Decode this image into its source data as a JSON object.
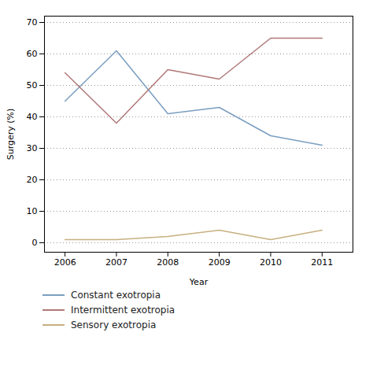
{
  "chart_data": {
    "type": "line",
    "x": [
      2006,
      2007,
      2008,
      2009,
      2010,
      2011
    ],
    "series": [
      {
        "name": "Constant exotropia",
        "color": "#7a9ec0",
        "values": [
          45,
          61,
          41,
          43,
          34,
          31
        ]
      },
      {
        "name": "Intermittent exotropia",
        "color": "#b07878",
        "values": [
          54,
          38,
          55,
          52,
          65,
          65
        ]
      },
      {
        "name": "Sensory exotropia",
        "color": "#c8b080",
        "values": [
          1,
          1,
          2,
          4,
          1,
          4
        ]
      }
    ],
    "xlabel": "Year",
    "ylabel": "Surgery (%)",
    "xlim": [
      2005.6,
      2011.6
    ],
    "xticks": [
      2006,
      2007,
      2008,
      2009,
      2010,
      2011
    ],
    "ylim": [
      -3,
      72
    ],
    "yticks": [
      0,
      10,
      20,
      30,
      40,
      50,
      60,
      70
    ],
    "grid": true,
    "legend": "bottom"
  }
}
